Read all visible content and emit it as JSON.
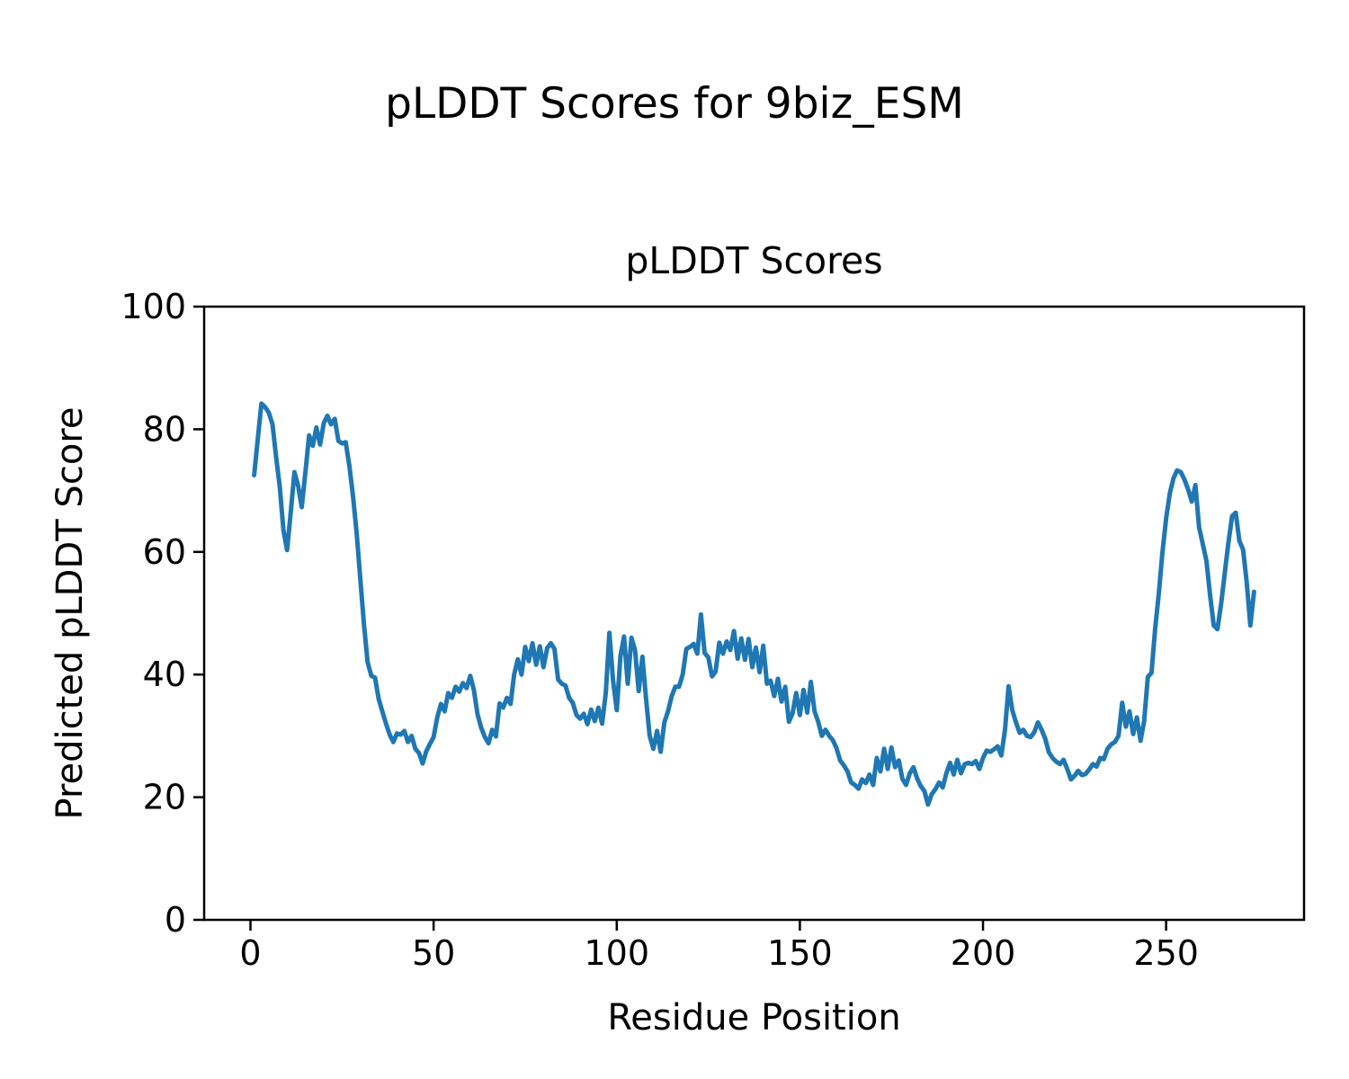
{
  "chart_data": {
    "type": "line",
    "suptitle": "pLDDT Scores for 9biz_ESM",
    "title": "pLDDT Scores",
    "xlabel": "Residue Position",
    "ylabel": "Predicted pLDDT Score",
    "x_ticks": [
      0,
      50,
      100,
      150,
      200,
      250
    ],
    "y_ticks": [
      0,
      20,
      40,
      60,
      80,
      100
    ],
    "xlim": [
      -12.65,
      287.65
    ],
    "ylim": [
      0,
      100
    ],
    "grid": false,
    "legend": null,
    "line_color": "#1f77b4",
    "line_width": 5,
    "axis_color": "#000000",
    "x_start": 1,
    "series_name": "Predicted pLDDT per residue",
    "values": [
      72.5,
      78.5,
      84.2,
      83.6,
      82.7,
      80.8,
      75.5,
      70.6,
      63.5,
      60.3,
      66.5,
      73.0,
      70.8,
      67.3,
      73.0,
      79.0,
      77.3,
      80.3,
      77.5,
      81.0,
      82.2,
      80.8,
      81.7,
      78.1,
      77.7,
      77.9,
      74.0,
      69.0,
      63.0,
      55.5,
      48.0,
      42.0,
      39.8,
      39.5,
      36.0,
      34.0,
      32.0,
      30.2,
      29.0,
      30.4,
      30.2,
      30.8,
      29.0,
      30.0,
      27.9,
      27.2,
      25.5,
      27.5,
      28.7,
      29.8,
      33.0,
      35.2,
      34.0,
      37.0,
      36.2,
      38.0,
      37.2,
      38.6,
      37.8,
      39.8,
      37.5,
      33.5,
      31.3,
      29.8,
      28.8,
      31.0,
      29.9,
      35.3,
      34.6,
      36.2,
      35.2,
      40.0,
      42.5,
      40.0,
      44.5,
      42.2,
      45.1,
      41.6,
      44.6,
      41.2,
      44.3,
      45.1,
      44.2,
      39.2,
      38.5,
      38.2,
      36.2,
      35.4,
      33.4,
      32.8,
      33.6,
      31.9,
      34.3,
      32.4,
      34.6,
      32.0,
      37.0,
      46.8,
      39.0,
      34.2,
      43.0,
      46.2,
      38.5,
      46.0,
      44.0,
      37.3,
      42.9,
      36.0,
      30.0,
      27.9,
      30.8,
      27.4,
      32.2,
      34.0,
      36.5,
      38.0,
      38.0,
      40.0,
      44.2,
      44.5,
      45.0,
      43.4,
      49.8,
      43.5,
      42.8,
      39.7,
      40.5,
      45.2,
      43.4,
      45.4,
      44.0,
      47.1,
      42.6,
      45.9,
      42.4,
      45.8,
      41.2,
      44.4,
      40.4,
      44.7,
      38.5,
      39.0,
      36.5,
      39.3,
      35.6,
      38.0,
      32.3,
      33.7,
      37.0,
      33.4,
      37.5,
      33.8,
      38.8,
      34.0,
      32.3,
      30.0,
      31.0,
      30.0,
      29.3,
      28.0,
      26.0,
      25.2,
      24.2,
      22.4,
      22.0,
      21.4,
      22.9,
      22.3,
      23.7,
      22.0,
      26.4,
      24.2,
      27.9,
      24.6,
      28.1,
      24.9,
      26.0,
      23.0,
      22.0,
      23.9,
      24.9,
      23.1,
      21.8,
      21.0,
      18.8,
      20.5,
      21.3,
      22.4,
      21.6,
      23.9,
      25.6,
      23.7,
      26.1,
      23.9,
      25.4,
      25.6,
      25.4,
      25.9,
      24.6,
      26.4,
      27.6,
      27.4,
      27.8,
      28.3,
      26.8,
      31.0,
      38.1,
      34.2,
      32.2,
      30.5,
      31.0,
      30.0,
      29.8,
      30.6,
      32.2,
      31.0,
      29.5,
      27.3,
      26.4,
      25.8,
      25.4,
      26.1,
      24.6,
      22.9,
      23.5,
      24.3,
      23.6,
      23.8,
      24.5,
      25.4,
      25.0,
      26.4,
      26.2,
      27.9,
      28.6,
      29.0,
      30.0,
      35.4,
      31.5,
      34.0,
      30.3,
      33.0,
      29.2,
      32.4,
      39.6,
      40.3,
      47.4,
      53.2,
      60.0,
      65.5,
      69.5,
      72.0,
      73.3,
      73.0,
      71.8,
      70.2,
      68.2,
      70.9,
      64.0,
      61.3,
      58.5,
      53.0,
      48.0,
      47.4,
      51.5,
      56.5,
      61.5,
      65.8,
      66.4,
      61.8,
      60.4,
      55.0,
      48.0,
      53.5
    ]
  }
}
